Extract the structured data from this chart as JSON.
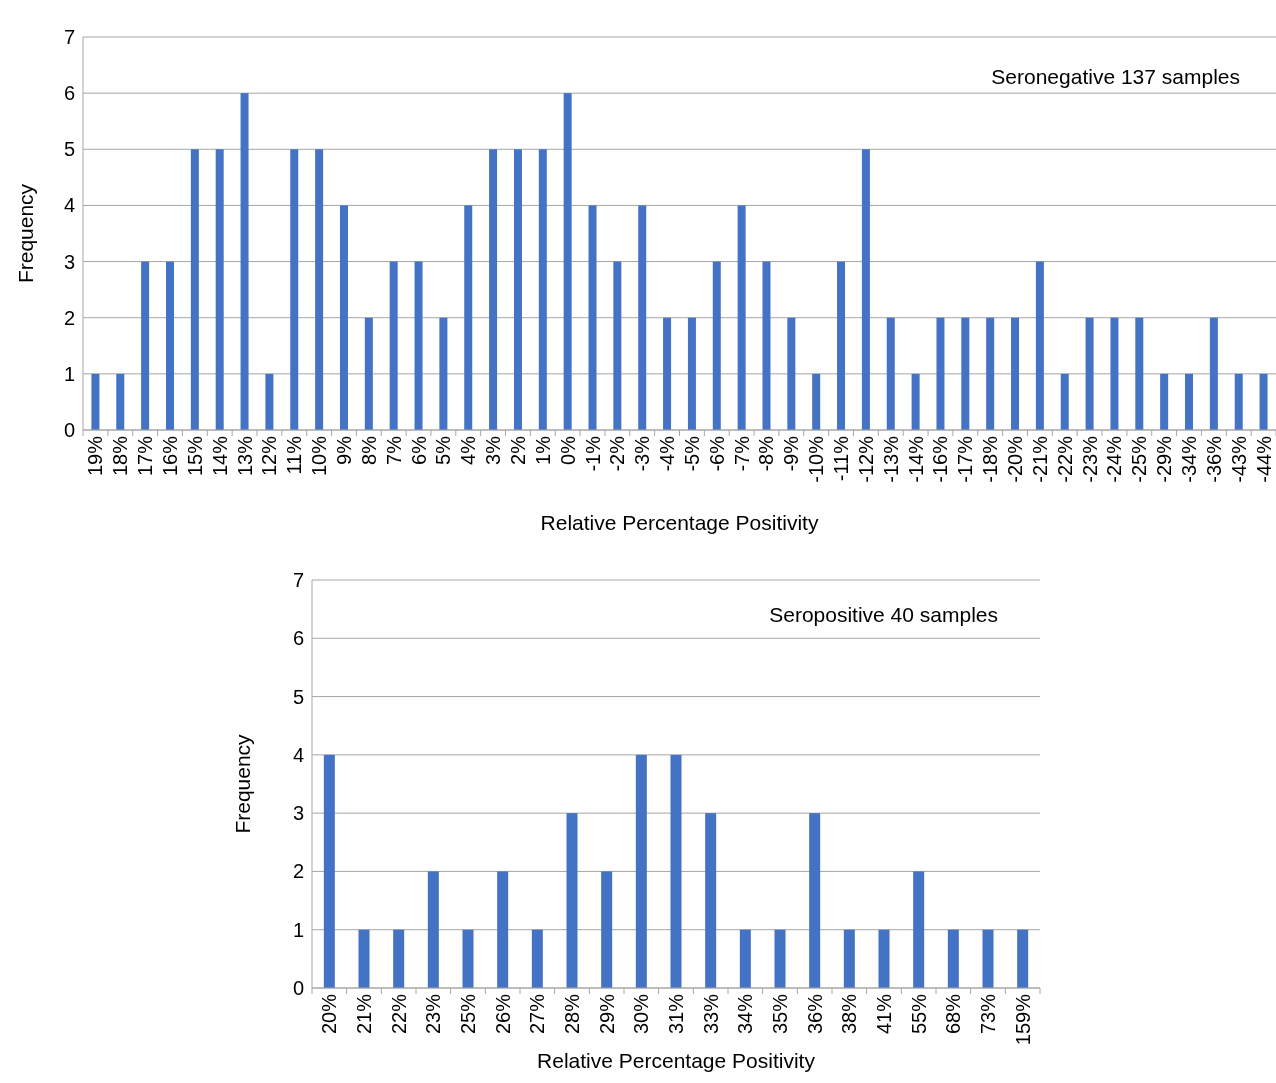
{
  "chart_data": [
    {
      "type": "bar",
      "xlabel": "Relative Percentage Positivity",
      "ylabel": "Frequency",
      "annotations": [
        "Seronegative 137 samples"
      ],
      "categories": [
        "19%",
        "18%",
        "17%",
        "16%",
        "15%",
        "14%",
        "13%",
        "12%",
        "11%",
        "10%",
        "9%",
        "8%",
        "7%",
        "6%",
        "5%",
        "4%",
        "3%",
        "2%",
        "1%",
        "0%",
        "-1%",
        "-2%",
        "-3%",
        "-4%",
        "-5%",
        "-6%",
        "-7%",
        "-8%",
        "-9%",
        "-10%",
        "-11%",
        "-12%",
        "-13%",
        "-14%",
        "-16%",
        "-17%",
        "-18%",
        "-20%",
        "-21%",
        "-22%",
        "-23%",
        "-24%",
        "-25%",
        "-29%",
        "-34%",
        "-36%",
        "-43%",
        "-44%"
      ],
      "values": [
        1,
        1,
        3,
        3,
        5,
        5,
        6,
        1,
        5,
        5,
        4,
        2,
        3,
        3,
        2,
        4,
        5,
        5,
        5,
        6,
        4,
        3,
        4,
        2,
        2,
        3,
        4,
        3,
        2,
        1,
        3,
        5,
        2,
        1,
        2,
        2,
        2,
        2,
        3,
        1,
        2,
        2,
        2,
        1,
        1,
        2,
        1,
        1
      ],
      "color": "#4472c4",
      "ylim": [
        0,
        7
      ],
      "yticks": [
        0,
        1,
        2,
        3,
        4,
        5,
        6,
        7
      ],
      "grid": "y"
    },
    {
      "type": "bar",
      "xlabel": "Relative Percentage Positivity",
      "ylabel": "Frequency",
      "annotations": [
        "Seropositive 40 samples"
      ],
      "categories": [
        "20%",
        "21%",
        "22%",
        "23%",
        "25%",
        "26%",
        "27%",
        "28%",
        "29%",
        "30%",
        "31%",
        "33%",
        "34%",
        "35%",
        "36%",
        "38%",
        "41%",
        "55%",
        "68%",
        "73%",
        "159%"
      ],
      "values": [
        4,
        1,
        1,
        2,
        1,
        2,
        1,
        3,
        2,
        4,
        4,
        3,
        1,
        1,
        3,
        1,
        1,
        2,
        1,
        1,
        1
      ],
      "color": "#4472c4",
      "ylim": [
        0,
        7
      ],
      "yticks": [
        0,
        1,
        2,
        3,
        4,
        5,
        6,
        7
      ],
      "grid": "y"
    }
  ]
}
